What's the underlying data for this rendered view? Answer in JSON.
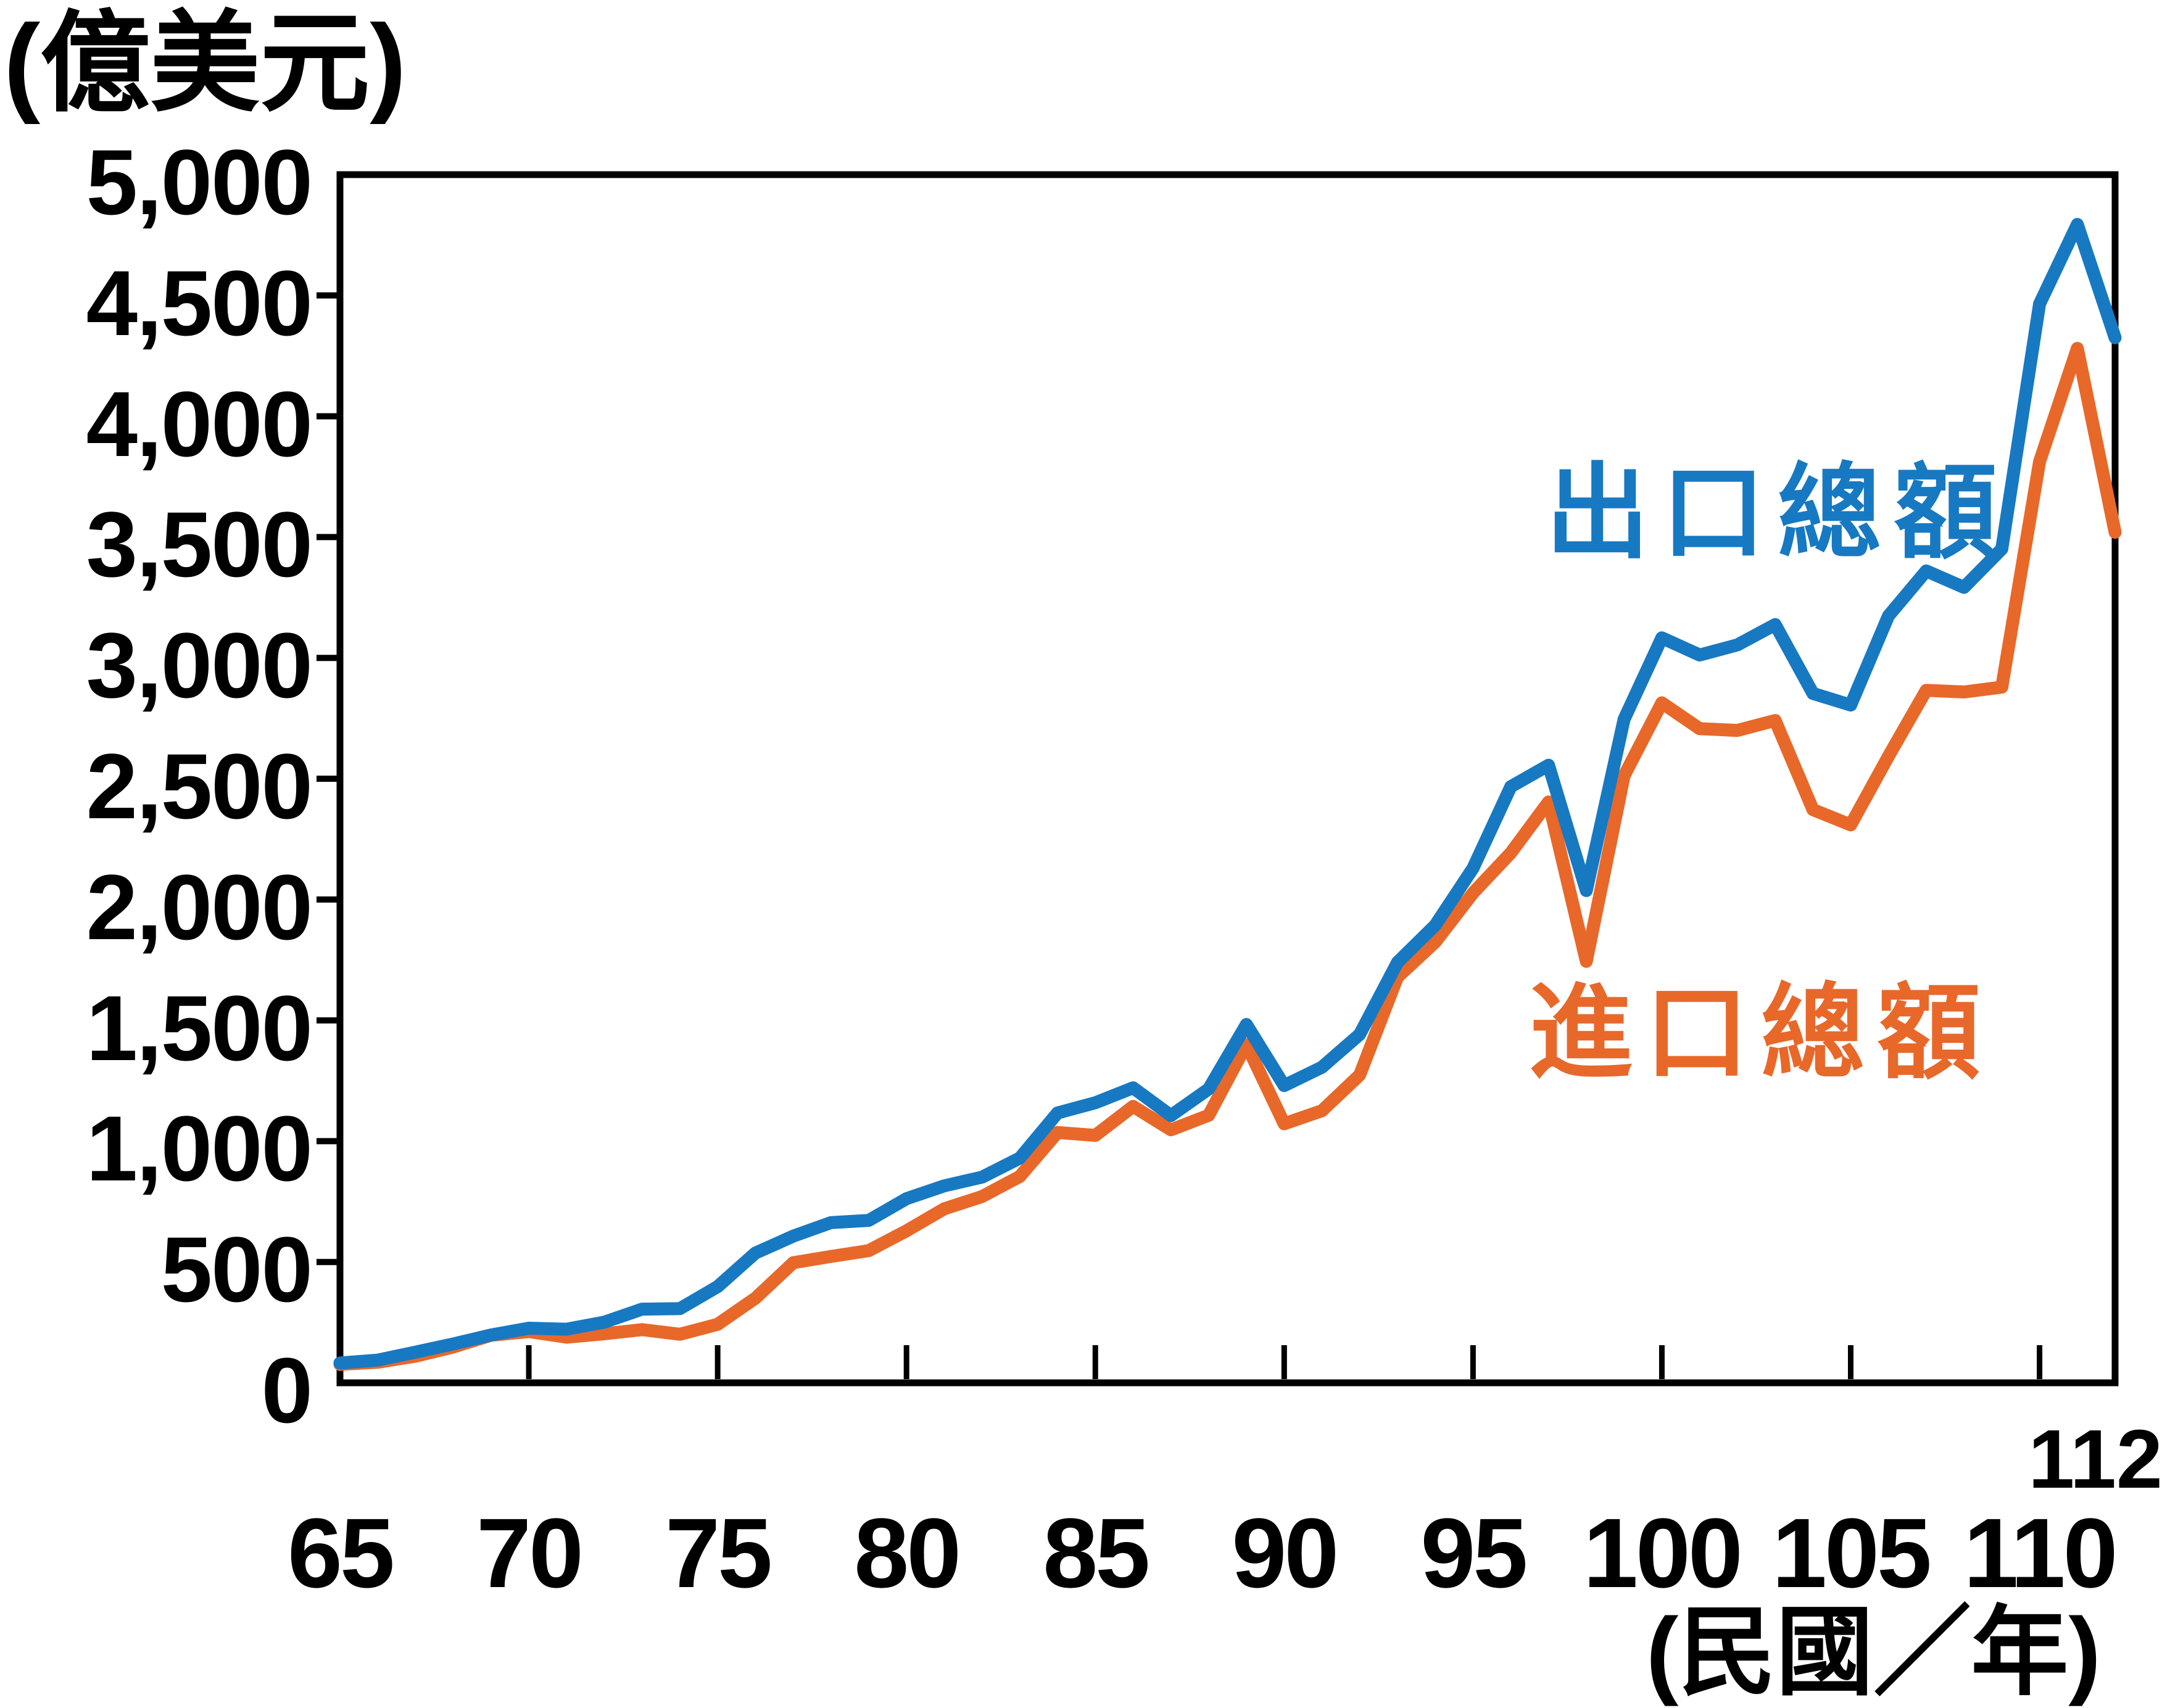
{
  "unit_label": "(億美元)",
  "x_axis_unit_label": "(民國／年)",
  "legend": {
    "exports": "出口總額",
    "imports": "進口總額"
  },
  "colors": {
    "exports": "#1779c2",
    "imports": "#e8682a",
    "axis": "#000000",
    "background": "#ffffff"
  },
  "chart_data": {
    "type": "line",
    "title": "",
    "ylabel": "億美元",
    "xlabel": "民國／年",
    "x_range": [
      65,
      112
    ],
    "ylim": [
      0,
      5000
    ],
    "grid": false,
    "legend_position": "inline-annotations",
    "xticks": [
      65,
      70,
      75,
      80,
      85,
      90,
      95,
      100,
      105,
      110
    ],
    "xtick_labels": [
      "65",
      "70",
      "75",
      "80",
      "85",
      "90",
      "95",
      "100",
      "105",
      "110"
    ],
    "x_end_tick": 112,
    "x_end_label": "112",
    "yticks": [
      0,
      500,
      1000,
      1500,
      2000,
      2500,
      3000,
      3500,
      4000,
      4500,
      5000
    ],
    "ytick_labels": [
      "0",
      "500",
      "1,000",
      "1,500",
      "2,000",
      "2,500",
      "3,000",
      "3,500",
      "4,000",
      "4,500",
      "5,000"
    ],
    "years": [
      65,
      66,
      67,
      68,
      69,
      70,
      71,
      72,
      73,
      74,
      75,
      76,
      77,
      78,
      79,
      80,
      81,
      82,
      83,
      84,
      85,
      86,
      87,
      88,
      89,
      90,
      91,
      92,
      93,
      94,
      95,
      96,
      97,
      98,
      99,
      100,
      101,
      102,
      103,
      104,
      105,
      106,
      107,
      108,
      109,
      110,
      111,
      112
    ],
    "series": [
      {
        "name": "出口總額",
        "data_name": "exports",
        "color": "#1779c2",
        "values": [
          82,
          94,
          127,
          161,
          198,
          226,
          222,
          251,
          305,
          307,
          398,
          537,
          607,
          663,
          672,
          762,
          815,
          851,
          930,
          1117,
          1159,
          1221,
          1106,
          1216,
          1483,
          1230,
          1306,
          1442,
          1740,
          1894,
          2130,
          2467,
          2556,
          2037,
          2746,
          3083,
          3012,
          3054,
          3138,
          2853,
          2805,
          3174,
          3360,
          3292,
          3451,
          4465,
          4794,
          4325
        ]
      },
      {
        "name": "進口總額",
        "data_name": "imports",
        "color": "#e8682a",
        "values": [
          76,
          85,
          110,
          148,
          197,
          212,
          189,
          203,
          220,
          201,
          242,
          350,
          497,
          523,
          547,
          629,
          720,
          771,
          854,
          1036,
          1024,
          1144,
          1047,
          1107,
          1400,
          1072,
          1126,
          1274,
          1679,
          1824,
          2027,
          2193,
          2404,
          1744,
          2512,
          2814,
          2707,
          2700,
          2741,
          2372,
          2309,
          2593,
          2866,
          2859,
          2879,
          3812,
          4281,
          3520
        ]
      }
    ]
  }
}
